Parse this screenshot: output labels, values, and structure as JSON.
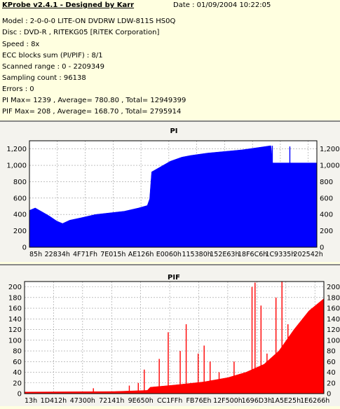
{
  "header": {
    "title": "KProbe v2.4.1 - Designed by Karr",
    "date": "Date : 01/09/2004 10:22:05"
  },
  "info": [
    "Model : 2-0-0-0 LITE-ON DVDRW LDW-811S   HS0Q",
    "Disc : DVD-R , RITEKG05 [RiTEK Corporation]",
    "Speed : 8x",
    "ECC blocks sum (PI/PIF) : 8/1",
    "Scanned range : 0 - 2209349",
    "Sampling count : 96138",
    "Errors : 0",
    "PI Max= 1239 , Average= 780.80 , Total= 12949399",
    "PIF Max= 208 , Average= 168.70 , Total= 2795914"
  ],
  "colors": {
    "background": "#ffffe0",
    "panel": "#f4f3ee",
    "pi_fill": "#0000ff",
    "pif_fill": "#ff0000",
    "grid": "#9a9a9a"
  },
  "chart_data": [
    {
      "type": "area",
      "title": "PI",
      "ylim": [
        0,
        1300
      ],
      "yticks": [
        0,
        200,
        400,
        600,
        800,
        1000,
        1200
      ],
      "ytick_labels": [
        "0",
        "200",
        "400",
        "600",
        "800",
        "1,000",
        "1,200"
      ],
      "xtick_labels": [
        "85h",
        "22834h",
        "4F71Fh",
        "7E015h",
        "AE126h",
        "E0060h",
        "115380h",
        "152E63h",
        "18F6C6h",
        "1C9335h",
        "202542h"
      ],
      "grid": true,
      "envelope": [
        {
          "x": 0.0,
          "y": 450
        },
        {
          "x": 0.02,
          "y": 480
        },
        {
          "x": 0.045,
          "y": 430
        },
        {
          "x": 0.07,
          "y": 380
        },
        {
          "x": 0.095,
          "y": 320
        },
        {
          "x": 0.115,
          "y": 290
        },
        {
          "x": 0.14,
          "y": 330
        },
        {
          "x": 0.18,
          "y": 360
        },
        {
          "x": 0.23,
          "y": 400
        },
        {
          "x": 0.28,
          "y": 420
        },
        {
          "x": 0.33,
          "y": 440
        },
        {
          "x": 0.38,
          "y": 480
        },
        {
          "x": 0.41,
          "y": 510
        },
        {
          "x": 0.418,
          "y": 590
        },
        {
          "x": 0.425,
          "y": 920
        },
        {
          "x": 0.45,
          "y": 970
        },
        {
          "x": 0.49,
          "y": 1050
        },
        {
          "x": 0.53,
          "y": 1100
        },
        {
          "x": 0.56,
          "y": 1120
        },
        {
          "x": 0.62,
          "y": 1150
        },
        {
          "x": 0.68,
          "y": 1170
        },
        {
          "x": 0.74,
          "y": 1190
        },
        {
          "x": 0.8,
          "y": 1220
        },
        {
          "x": 0.84,
          "y": 1240
        },
        {
          "x": 0.846,
          "y": 1030
        },
        {
          "x": 0.9,
          "y": 1030
        },
        {
          "x": 1.0,
          "y": 1030
        }
      ],
      "spikes": [
        {
          "x": 0.845,
          "y": 1239
        },
        {
          "x": 0.906,
          "y": 1230
        }
      ]
    },
    {
      "type": "area",
      "title": "PIF",
      "ylim": [
        0,
        210
      ],
      "yticks": [
        0,
        20,
        40,
        60,
        80,
        100,
        120,
        140,
        160,
        180,
        200
      ],
      "ytick_labels": [
        "0",
        "20",
        "40",
        "60",
        "80",
        "100",
        "120",
        "140",
        "160",
        "180",
        "200"
      ],
      "xtick_labels": [
        "13h",
        "1D412h",
        "47300h",
        "72141h",
        "9E650h",
        "CC1FFh",
        "FB76Eh",
        "12F500h",
        "1696D3h",
        "1A5E25h",
        "1E6266h"
      ],
      "grid": true,
      "envelope": [
        {
          "x": 0.0,
          "y": 3
        },
        {
          "x": 0.3,
          "y": 4
        },
        {
          "x": 0.41,
          "y": 6
        },
        {
          "x": 0.42,
          "y": 12
        },
        {
          "x": 0.5,
          "y": 16
        },
        {
          "x": 0.6,
          "y": 22
        },
        {
          "x": 0.68,
          "y": 30
        },
        {
          "x": 0.74,
          "y": 40
        },
        {
          "x": 0.8,
          "y": 55
        },
        {
          "x": 0.85,
          "y": 80
        },
        {
          "x": 0.9,
          "y": 120
        },
        {
          "x": 0.95,
          "y": 155
        },
        {
          "x": 1.0,
          "y": 178
        }
      ],
      "spikes": [
        {
          "x": 0.23,
          "y": 10
        },
        {
          "x": 0.35,
          "y": 15
        },
        {
          "x": 0.38,
          "y": 20
        },
        {
          "x": 0.4,
          "y": 45
        },
        {
          "x": 0.45,
          "y": 65
        },
        {
          "x": 0.48,
          "y": 115
        },
        {
          "x": 0.52,
          "y": 80
        },
        {
          "x": 0.54,
          "y": 130
        },
        {
          "x": 0.58,
          "y": 75
        },
        {
          "x": 0.6,
          "y": 90
        },
        {
          "x": 0.62,
          "y": 60
        },
        {
          "x": 0.65,
          "y": 40
        },
        {
          "x": 0.7,
          "y": 60
        },
        {
          "x": 0.76,
          "y": 200
        },
        {
          "x": 0.77,
          "y": 208
        },
        {
          "x": 0.79,
          "y": 165
        },
        {
          "x": 0.81,
          "y": 75
        },
        {
          "x": 0.84,
          "y": 180
        },
        {
          "x": 0.86,
          "y": 210
        },
        {
          "x": 0.88,
          "y": 130
        }
      ]
    }
  ]
}
